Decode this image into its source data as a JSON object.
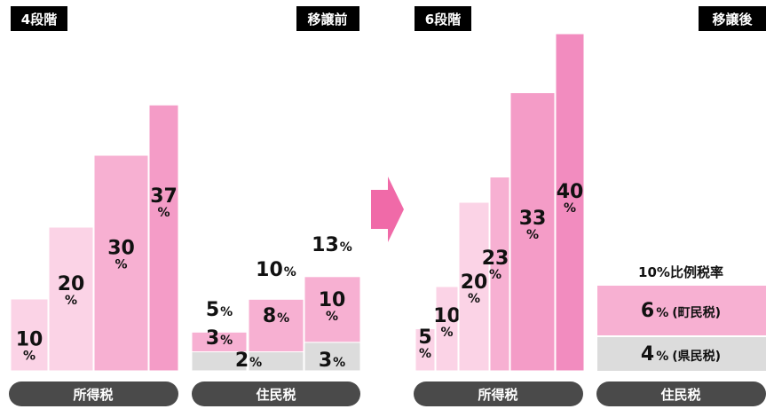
{
  "colors": {
    "bar_light": "#fbd3e6",
    "bar_mid": "#f7b0d2",
    "bar_strong": "#f49cc7",
    "bar_deep": "#f28cbf",
    "gray": "#dcdcdc",
    "pill": "#4a4a4a",
    "arrow": "#f06aa8"
  },
  "tags": {
    "before_steps": "4段階",
    "before_state": "移譲前",
    "after_steps": "6段階",
    "after_state": "移譲後"
  },
  "pills": {
    "income_tax_before": "所得税",
    "resident_tax_before": "住民税",
    "income_tax_after": "所得税",
    "resident_tax_after": "住民税"
  },
  "percent_sign": "%",
  "resident_after": {
    "headline": "10%比例税率",
    "town_value": "6",
    "town_label": "(町民税)",
    "pref_value": "4",
    "pref_label": "(県民税)"
  },
  "chart_data": [
    {
      "type": "bar",
      "title": "所得税（移譲前・4段階）",
      "categories": [
        "1",
        "2",
        "3",
        "4"
      ],
      "values": [
        10,
        20,
        30,
        37
      ],
      "unit": "%"
    },
    {
      "type": "bar",
      "title": "住民税（移譲前）",
      "categories": [
        "1",
        "2",
        "3"
      ],
      "series": [
        {
          "name": "県民税",
          "values": [
            2,
            2,
            3
          ]
        },
        {
          "name": "町民税",
          "values": [
            3,
            8,
            10
          ]
        }
      ],
      "totals": [
        5,
        10,
        13
      ],
      "unit": "%"
    },
    {
      "type": "bar",
      "title": "所得税（移譲後・6段階）",
      "categories": [
        "1",
        "2",
        "3",
        "4",
        "5",
        "6"
      ],
      "values": [
        5,
        10,
        20,
        23,
        33,
        40
      ],
      "unit": "%"
    },
    {
      "type": "bar",
      "title": "住民税（移譲後）",
      "categories": [
        "10%比例税率"
      ],
      "series": [
        {
          "name": "県民税",
          "values": [
            4
          ]
        },
        {
          "name": "町民税",
          "values": [
            6
          ]
        }
      ],
      "unit": "%"
    }
  ]
}
